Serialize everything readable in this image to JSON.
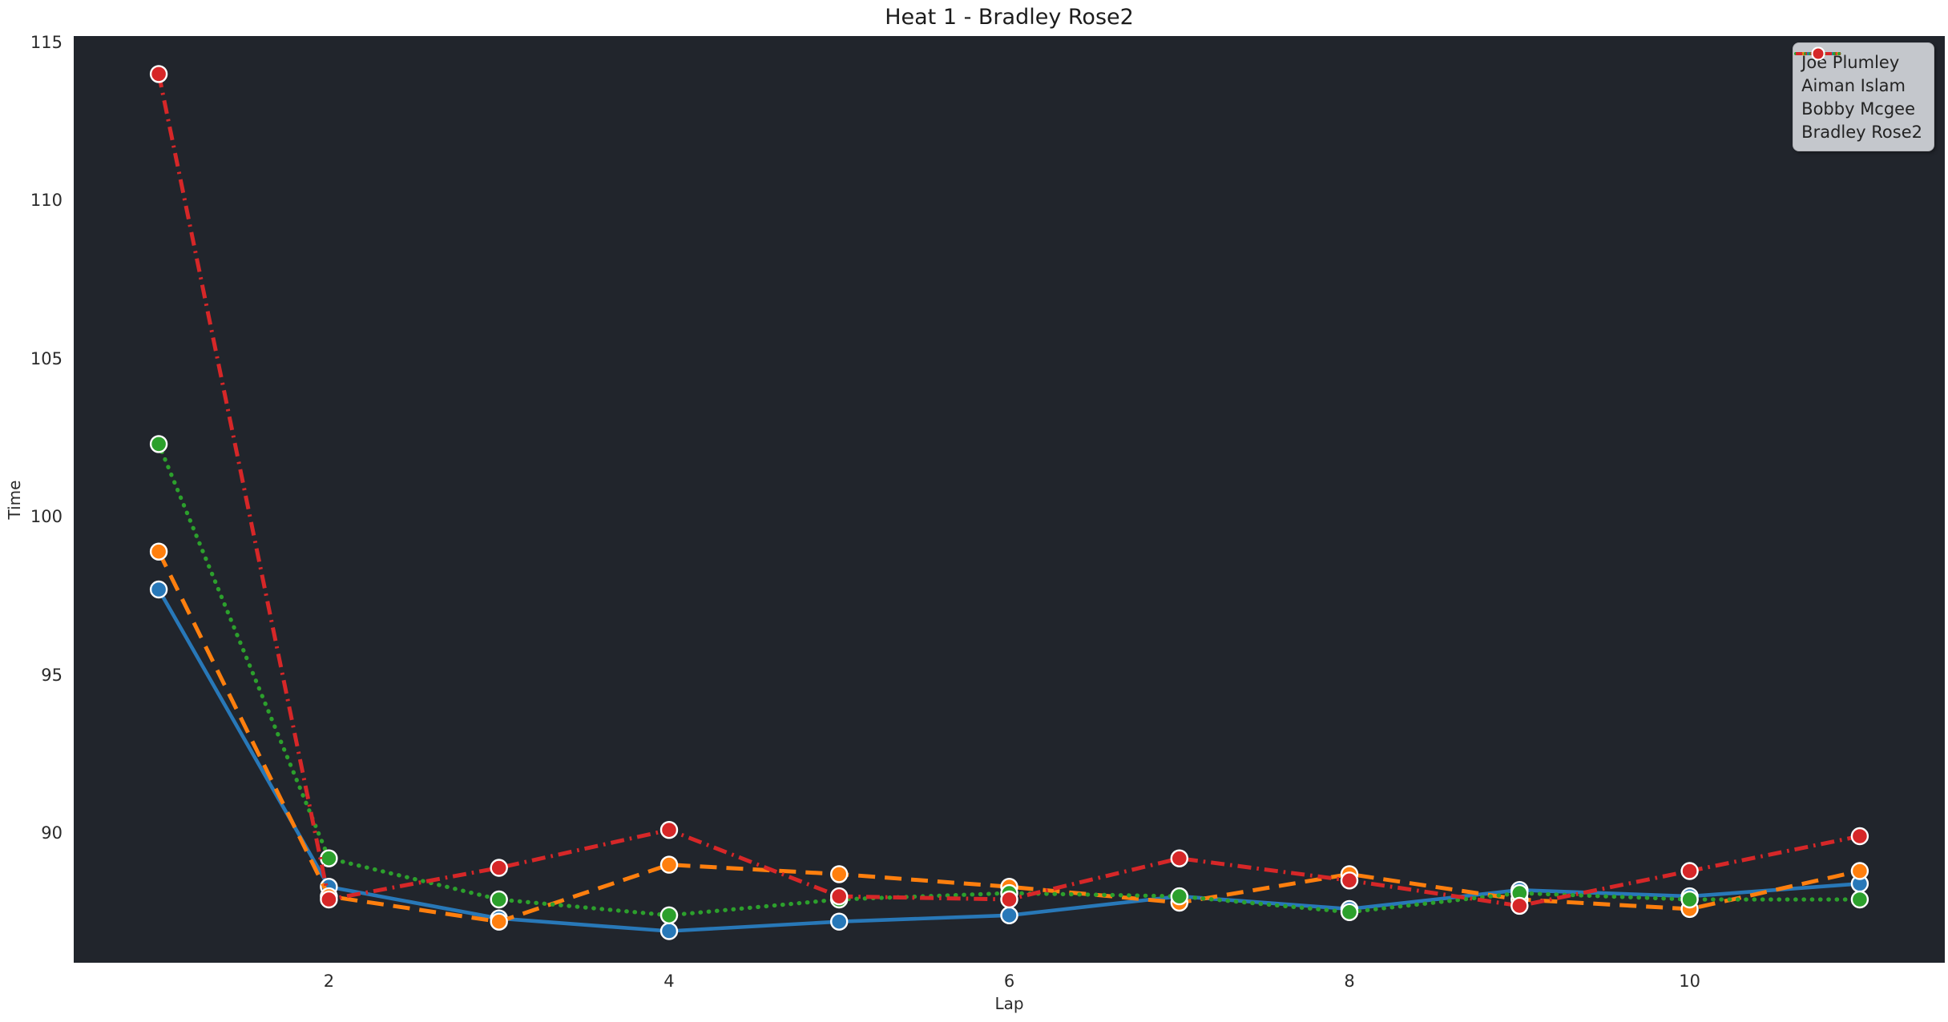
{
  "title": "Heat 1 - Bradley Rose2",
  "colors": {
    "figure_bg": "#ffffff",
    "axes_bg": "#21252c",
    "text": "#2b2b2b",
    "legend_bg": "#ced0d5",
    "marker_edge": "#ffffff"
  },
  "legend": {
    "position": "upper right",
    "entries": [
      "Joe Plumley",
      "Aiman Islam",
      "Bobby Mcgee",
      "Bradley Rose2"
    ]
  },
  "chart_data": {
    "type": "line",
    "title": "Heat 1 - Bradley Rose2",
    "xlabel": "Lap",
    "ylabel": "Time",
    "x": [
      1,
      2,
      3,
      4,
      5,
      6,
      7,
      8,
      9,
      10,
      11
    ],
    "series": [
      {
        "name": "Joe Plumley",
        "color": "#2878b8",
        "dash": "solid",
        "values": [
          97.7,
          88.3,
          87.3,
          86.9,
          87.2,
          87.4,
          88.0,
          87.6,
          88.2,
          88.0,
          88.4
        ]
      },
      {
        "name": "Aiman Islam",
        "color": "#ff7f0e",
        "dash": "dashed",
        "values": [
          98.9,
          88.0,
          87.2,
          89.0,
          88.7,
          88.3,
          87.8,
          88.7,
          87.9,
          87.6,
          88.8
        ]
      },
      {
        "name": "Bobby Mcgee",
        "color": "#2ca02c",
        "dash": "dotted",
        "values": [
          102.3,
          89.2,
          87.9,
          87.4,
          87.9,
          88.1,
          88.0,
          87.5,
          88.1,
          87.9,
          87.9
        ]
      },
      {
        "name": "Bradley Rose2",
        "color": "#d62728",
        "dash": "dashdot",
        "values": [
          114.0,
          87.9,
          88.9,
          90.1,
          88.0,
          87.9,
          89.2,
          88.5,
          87.7,
          88.8,
          89.9
        ]
      }
    ],
    "xlim": [
      0.5,
      11.5
    ],
    "ylim": [
      85.9,
      115.2
    ],
    "x_ticks": [
      2,
      4,
      6,
      8,
      10
    ],
    "y_ticks": [
      115,
      110,
      105,
      100,
      95,
      90
    ],
    "grid": false,
    "legend_position": "upper right"
  }
}
